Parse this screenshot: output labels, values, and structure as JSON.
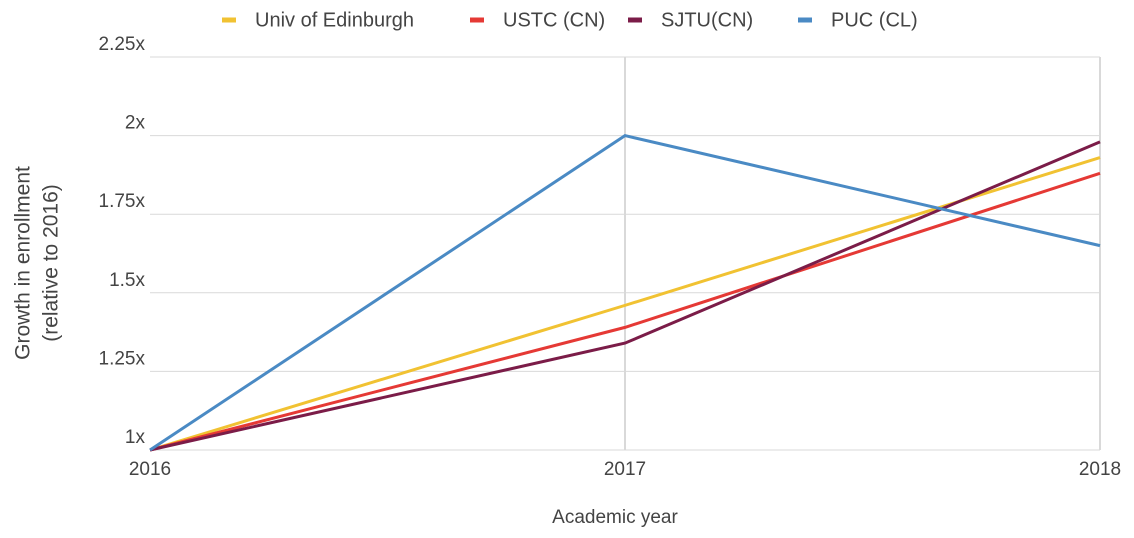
{
  "chart_data": {
    "type": "line",
    "xlabel": "Academic year",
    "ylabel": [
      "Growth in enrollment",
      "(relative to 2016)"
    ],
    "categories": [
      "2016",
      "2017",
      "2018"
    ],
    "series": [
      {
        "name": "Univ of Edinburgh",
        "color": "#f1c232",
        "values": [
          1,
          1.46,
          1.93
        ]
      },
      {
        "name": "USTC (CN)",
        "color": "#e53935",
        "values": [
          1,
          1.39,
          1.88
        ]
      },
      {
        "name": "SJTU(CN)",
        "color": "#7b1c48",
        "values": [
          1,
          1.34,
          1.98
        ]
      },
      {
        "name": "PUC (CL)",
        "color": "#4a8ac4",
        "values": [
          1,
          2,
          1.65
        ]
      }
    ],
    "ylim": [
      1,
      2.25
    ],
    "yticks": [
      {
        "value": 1,
        "label": "1x"
      },
      {
        "value": 1.25,
        "label": "1.25x"
      },
      {
        "value": 1.5,
        "label": "1.5x"
      },
      {
        "value": 1.75,
        "label": "1.75x"
      },
      {
        "value": 2,
        "label": "2x"
      },
      {
        "value": 2.25,
        "label": "2.25x"
      }
    ],
    "grid": true,
    "legend": "top"
  }
}
